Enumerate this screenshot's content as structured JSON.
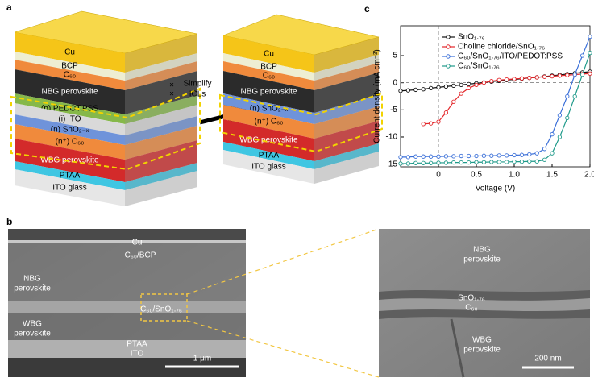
{
  "figure": {
    "panel_labels": [
      "a",
      "b",
      "c"
    ]
  },
  "panel_a": {
    "left_stack": [
      {
        "label": "Cu",
        "color": "#f5c518"
      },
      {
        "label": "BCP",
        "color": "#eeeed2"
      },
      {
        "label": "C₆₀",
        "color": "#f08a3c"
      },
      {
        "label": "NBG perovskite",
        "color": "#2b2b2b"
      },
      {
        "label": "(p) PEDOT:PSS",
        "color": "#86b84a"
      },
      {
        "label": "(i) ITO",
        "color": "#d9d9d9"
      },
      {
        "label": "(n) SnO₂₋ₓ",
        "color": "#6f93da"
      },
      {
        "label": "(n⁺) C₆₀",
        "color": "#f08a3c"
      },
      {
        "label": "WBG perovskite",
        "color": "#d32a2a"
      },
      {
        "label": "PTAA",
        "color": "#3fc6e2"
      },
      {
        "label": "ITO glass",
        "color": "#e6e6e6"
      }
    ],
    "right_stack": [
      {
        "label": "Cu",
        "color": "#f5c518"
      },
      {
        "label": "BCP",
        "color": "#eeeed2"
      },
      {
        "label": "C₆₀",
        "color": "#f08a3c"
      },
      {
        "label": "NBG perovskite",
        "color": "#2b2b2b"
      },
      {
        "label": "(n) SnO₂₋ₓ",
        "color": "#6f93da"
      },
      {
        "label": "(n⁺) C₆₀",
        "color": "#f08a3c"
      },
      {
        "label": "WBG perovskite",
        "color": "#d32a2a"
      },
      {
        "label": "PTAA",
        "color": "#3fc6e2"
      },
      {
        "label": "ITO glass",
        "color": "#e6e6e6"
      }
    ],
    "arrow_label": [
      "Simplify",
      "ICLs"
    ],
    "cross_marks": [
      "×",
      "×"
    ]
  },
  "chart_data": {
    "type": "line",
    "y_label": "Current density (mA cm⁻²)",
    "x_label": "Voltage (V)",
    "x": [
      -0.5,
      -0.4,
      -0.3,
      -0.2,
      -0.1,
      0,
      0.1,
      0.2,
      0.3,
      0.4,
      0.5,
      0.6,
      0.7,
      0.8,
      0.9,
      1,
      1.1,
      1.2,
      1.3,
      1.4,
      1.5,
      1.6,
      1.7,
      1.8,
      1.9,
      2
    ],
    "xlim": [
      -0.5,
      2
    ],
    "xticks": [
      0,
      0.5,
      {
        "value": 1,
        "label": "1.0"
      },
      1.5,
      {
        "value": 2,
        "label": "2.0"
      }
    ],
    "ylim": [
      -15.5,
      10.5
    ],
    "yticks": [
      -15,
      -10,
      -5,
      0,
      5
    ],
    "legend": "upper left",
    "series": [
      {
        "name": "SnO₁.₇₆",
        "color": "#111111",
        "values": [
          -1.5,
          -1.4,
          -1.3,
          -1.2,
          -1.0,
          -0.85,
          -0.7,
          -0.55,
          -0.4,
          -0.25,
          -0.1,
          0.05,
          0.2,
          0.35,
          0.5,
          0.6,
          0.75,
          0.9,
          1.0,
          1.15,
          1.3,
          1.45,
          1.6,
          1.75,
          1.9,
          2.05
        ]
      },
      {
        "name": "Choline chloride/SnO₁.₇₆",
        "color": "#e3262a",
        "values": [
          null,
          null,
          null,
          -7.6,
          -7.5,
          -7.2,
          -5.5,
          -3.5,
          -2.0,
          -1.0,
          -0.4,
          0,
          0.3,
          0.5,
          0.6,
          0.7,
          0.8,
          0.9,
          1.0,
          1.1,
          1.2,
          1.3,
          1.4,
          1.5,
          1.6,
          1.7
        ]
      },
      {
        "name": "C₆₀/SnO₁.₇₆/ITO/PEDOT:PSS",
        "color": "#3a6fd8",
        "values": [
          -13.7,
          -13.7,
          -13.6,
          -13.6,
          -13.6,
          -13.6,
          -13.55,
          -13.55,
          -13.5,
          -13.5,
          -13.5,
          -13.45,
          -13.45,
          -13.4,
          -13.4,
          -13.35,
          -13.3,
          -13.2,
          -13.0,
          -12.2,
          -9.5,
          -6.0,
          -2.5,
          1.5,
          5.0,
          8.5
        ]
      },
      {
        "name": "C₆₀/SnO₁.₇₆",
        "color": "#1f9a8a",
        "values": [
          -14.9,
          -14.9,
          -14.8,
          -14.8,
          -14.8,
          -14.75,
          -14.75,
          -14.7,
          -14.7,
          -14.7,
          -14.65,
          -14.65,
          -14.6,
          -14.6,
          -14.6,
          -14.55,
          -14.55,
          -14.5,
          -14.5,
          -14.2,
          -13.0,
          -10.0,
          -6.5,
          -2.5,
          1.5,
          5.5
        ]
      }
    ]
  },
  "panel_b": {
    "left_image": {
      "labels": [
        {
          "lines": [
            "Cu"
          ]
        },
        {
          "lines": [
            "C₆₀/BCP"
          ]
        },
        {
          "lines": [
            "NBG",
            "perovskite"
          ]
        },
        {
          "lines": [
            "C₆₀/SnO₁.₇₆"
          ]
        },
        {
          "lines": [
            "WBG",
            "perovskite"
          ]
        },
        {
          "lines": [
            "PTAA"
          ]
        },
        {
          "lines": [
            "ITO"
          ]
        }
      ],
      "scale_bar": "1 μm"
    },
    "right_image": {
      "labels": [
        {
          "lines": [
            "NBG",
            "perovskite"
          ]
        },
        {
          "lines": [
            "SnO₁.₇₆",
            "C₆₀"
          ]
        },
        {
          "lines": [
            "WBG",
            "perovskite"
          ]
        }
      ],
      "scale_bar": "200 nm"
    }
  }
}
